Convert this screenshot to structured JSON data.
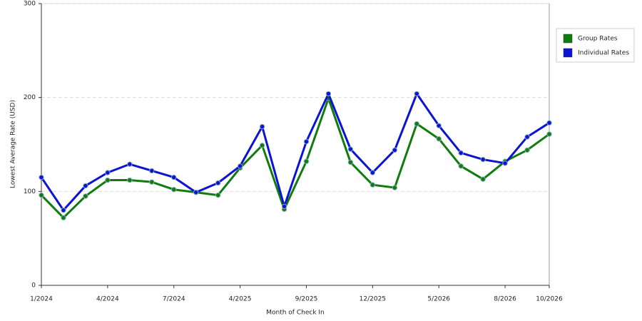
{
  "chart_data": {
    "type": "line",
    "x_label": "Month of Check In",
    "y_label": "Lowest Average Rate (USD)",
    "categories": [
      "1/2024",
      null,
      null,
      "4/2024",
      null,
      null,
      "7/2024",
      null,
      null,
      "4/2025",
      null,
      null,
      "9/2025",
      null,
      null,
      "12/2025",
      null,
      null,
      "5/2026",
      null,
      null,
      "8/2026",
      null,
      "10/2026"
    ],
    "series": [
      {
        "name": "Group Rates",
        "color": "#107c10",
        "values": [
          96,
          72,
          95,
          112,
          112,
          110,
          102,
          99,
          96,
          125,
          149,
          81,
          132,
          199,
          131,
          107,
          104,
          172,
          156,
          127,
          113,
          132,
          144,
          161
        ]
      },
      {
        "name": "Individual Rates",
        "color": "#0a14d2",
        "values": [
          115,
          80,
          106,
          120,
          129,
          122,
          115,
          99,
          109,
          127,
          169,
          84,
          153,
          204,
          145,
          120,
          144,
          204,
          170,
          141,
          134,
          130,
          158,
          173
        ]
      }
    ],
    "ylim": [
      0,
      300
    ],
    "yticks": [
      0,
      100,
      200,
      300
    ],
    "grid": true,
    "legend": "right"
  }
}
